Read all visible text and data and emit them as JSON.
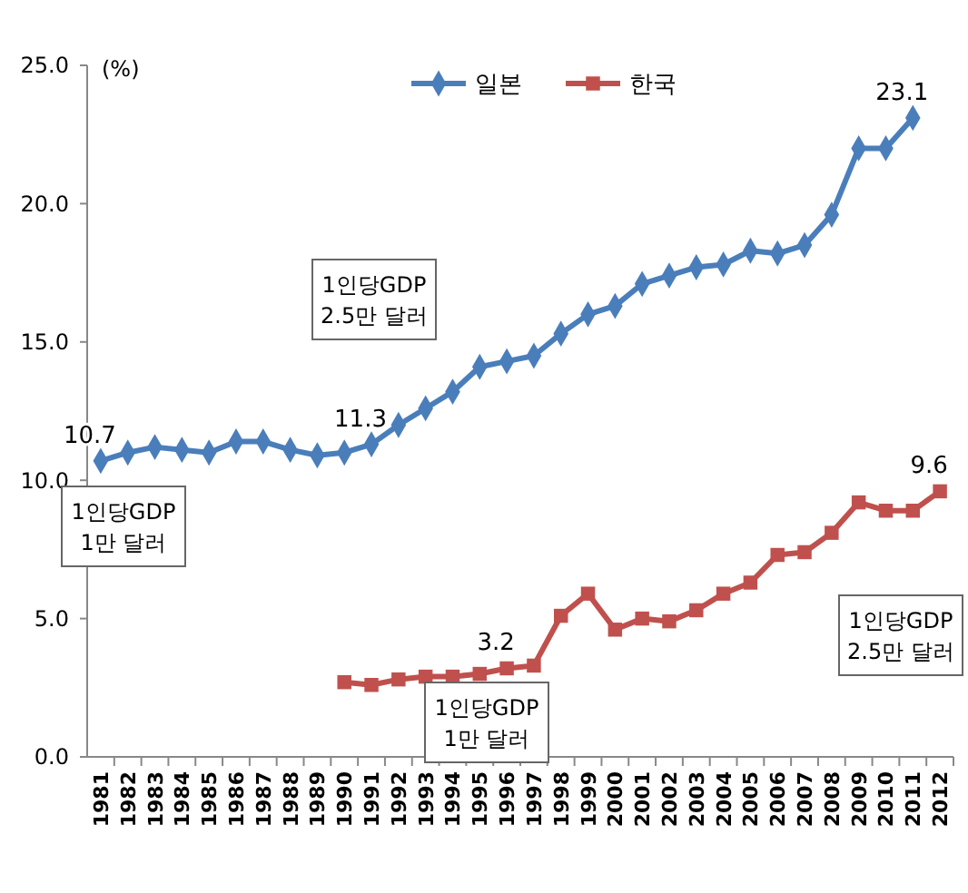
{
  "chart_data": {
    "type": "line",
    "ylabel": "(%)",
    "categories": [
      "1981",
      "1982",
      "1983",
      "1984",
      "1985",
      "1986",
      "1987",
      "1988",
      "1989",
      "1990",
      "1991",
      "1992",
      "1993",
      "1994",
      "1995",
      "1996",
      "1997",
      "1998",
      "1999",
      "2000",
      "2001",
      "2002",
      "2003",
      "2004",
      "2005",
      "2006",
      "2007",
      "2008",
      "2009",
      "2010",
      "2011",
      "2012"
    ],
    "series": [
      {
        "name": "일본",
        "color": "#4a7ebb",
        "marker": "diamond",
        "values": [
          10.7,
          11.0,
          11.2,
          11.1,
          11.0,
          11.4,
          11.4,
          11.1,
          10.9,
          11.0,
          11.3,
          12.0,
          12.6,
          13.2,
          14.1,
          14.3,
          14.5,
          15.3,
          16.0,
          16.3,
          17.1,
          17.4,
          17.7,
          17.8,
          18.3,
          18.2,
          18.5,
          19.6,
          22.0,
          22.0,
          23.1,
          null
        ],
        "value_labels": [
          "10.7",
          null,
          null,
          null,
          null,
          null,
          null,
          null,
          null,
          null,
          "11.3",
          null,
          null,
          null,
          null,
          null,
          null,
          null,
          null,
          null,
          null,
          null,
          null,
          null,
          null,
          null,
          null,
          null,
          null,
          null,
          "23.1",
          null
        ]
      },
      {
        "name": "한국",
        "color": "#c0504d",
        "marker": "square",
        "values": [
          null,
          null,
          null,
          null,
          null,
          null,
          null,
          null,
          null,
          2.7,
          2.6,
          2.8,
          2.9,
          2.9,
          3.0,
          3.2,
          3.3,
          5.1,
          5.9,
          4.6,
          5.0,
          4.9,
          5.3,
          5.9,
          6.3,
          7.3,
          7.4,
          8.1,
          9.2,
          8.9,
          8.9,
          9.6
        ],
        "value_labels": [
          null,
          null,
          null,
          null,
          null,
          null,
          null,
          null,
          null,
          null,
          null,
          null,
          null,
          null,
          null,
          "3.2",
          null,
          null,
          null,
          null,
          null,
          null,
          null,
          null,
          null,
          null,
          null,
          null,
          null,
          null,
          null,
          "9.6"
        ]
      }
    ],
    "ylim": [
      0,
      25
    ],
    "yticks": [
      {
        "value": 0,
        "label": "0.0"
      },
      {
        "value": 5,
        "label": "5.0"
      },
      {
        "value": 10,
        "label": "10.0"
      },
      {
        "value": 15,
        "label": "15.0"
      },
      {
        "value": 20,
        "label": "20.0"
      },
      {
        "value": 25,
        "label": "25.0"
      }
    ],
    "grid": false,
    "legend": "top",
    "line_style": "solid",
    "annotations": [
      "1인당GDP\n1만 달러",
      "1인당GDP\n2.5만 달러",
      "1인당GDP\n1만 달러",
      "1인당GDP\n2.5만 달러"
    ]
  }
}
